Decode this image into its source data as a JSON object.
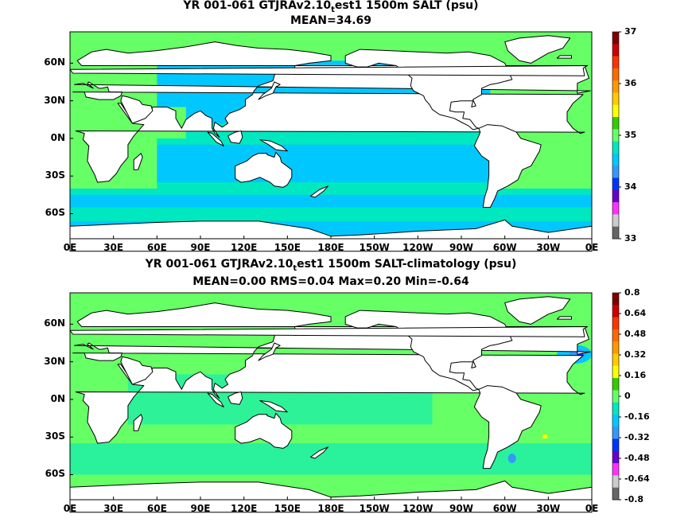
{
  "chart_data": [
    {
      "type": "heatmap",
      "title_main": "YR 001-061 GTJRAv2.10",
      "title_sub": "t",
      "title_rest": "est1 1500m SALT (psu)",
      "subtitle": "MEAN=34.69",
      "x_ticks": [
        "0E",
        "30E",
        "60E",
        "90E",
        "120E",
        "150E",
        "180E",
        "150W",
        "120W",
        "90W",
        "60W",
        "30W",
        "0E"
      ],
      "y_ticks": [
        "60N",
        "30N",
        "0N",
        "30S",
        "60S"
      ],
      "colorbar": {
        "ticks": [
          "37",
          "36",
          "35",
          "34",
          "33"
        ],
        "colors": [
          "#7f0000",
          "#cc0000",
          "#ff3300",
          "#ff6a00",
          "#ff9900",
          "#ffcc00",
          "#ffff00",
          "#33cc00",
          "#66ff66",
          "#00e8c0",
          "#00c8ff",
          "#3399ff",
          "#0033ff",
          "#6600cc",
          "#ff33ff",
          "#cccccc",
          "#666666"
        ]
      },
      "ocean_base_color": "#00c8ff",
      "ocean_secondary_color": "#00e8c0",
      "atlantic_color": "#66ff66"
    },
    {
      "type": "heatmap",
      "title_main": "YR 001-061 GTJRAv2.10",
      "title_sub": "t",
      "title_rest": "est1 1500m SALT-climatology (psu)",
      "subtitle": "MEAN=0.00   RMS=0.04   Max=0.20   Min=-0.64",
      "x_ticks": [
        "0E",
        "30E",
        "60E",
        "90E",
        "120E",
        "150E",
        "180E",
        "150W",
        "120W",
        "90W",
        "60W",
        "30W",
        "0E"
      ],
      "y_ticks": [
        "60N",
        "30N",
        "0N",
        "30S",
        "60S"
      ],
      "colorbar": {
        "ticks": [
          "0.8",
          "0.64",
          "0.48",
          "0.32",
          "0.16",
          "0",
          "-0.16",
          "-0.32",
          "-0.48",
          "-0.64",
          "-0.8"
        ],
        "colors": [
          "#7f0000",
          "#cc0000",
          "#ff3300",
          "#ff6a00",
          "#ff9900",
          "#ffcc00",
          "#ffff00",
          "#33cc00",
          "#66ff66",
          "#00e8c0",
          "#00c8ff",
          "#3399ff",
          "#0033ff",
          "#6600cc",
          "#ff33ff",
          "#cccccc",
          "#666666"
        ]
      },
      "ocean_base_color": "#66ff66",
      "ocean_secondary_color": "#00e8c0",
      "atlantic_color": "#66ff66"
    }
  ]
}
